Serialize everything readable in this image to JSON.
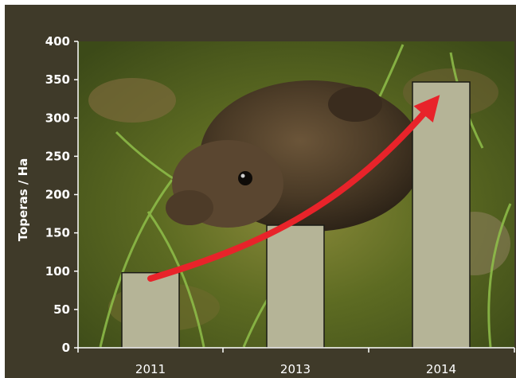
{
  "colors": {
    "background": "#3f3a29",
    "bar_fill": "#b5b497",
    "bar_stroke": "#1a1a14",
    "trend_arrow": "#e8232a",
    "axis": "#ffffff"
  },
  "photo": {
    "subject": "vole-photo"
  },
  "chart_data": {
    "type": "bar",
    "title": "",
    "xlabel": "",
    "ylabel": "Toperas / Ha",
    "categories": [
      "2011",
      "2013",
      "2014"
    ],
    "values": [
      98,
      160,
      347
    ],
    "ylim": [
      0,
      400
    ],
    "yticks": [
      0,
      50,
      100,
      150,
      200,
      250,
      300,
      350,
      400
    ],
    "grid": false,
    "legend": "none",
    "annotation": "trend-arrow"
  }
}
